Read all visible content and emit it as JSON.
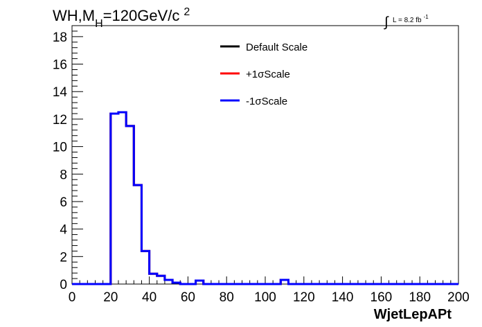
{
  "chart_data": {
    "type": "histogram",
    "title_main": "WH,M",
    "title_sub": "H",
    "title_rest": "=120GeV/c",
    "title_sup": "2",
    "lumi_text": "L = 8.2 fb",
    "lumi_sup": "-1",
    "xlabel": "WjetLepAPt",
    "ylabel": "",
    "xlim": [
      0,
      200
    ],
    "ylim": [
      0,
      18.8
    ],
    "x_ticks": [
      0,
      20,
      40,
      60,
      80,
      100,
      120,
      140,
      160,
      180,
      200
    ],
    "y_ticks": [
      0,
      2,
      4,
      6,
      8,
      10,
      12,
      14,
      16,
      18
    ],
    "bin_width": 4,
    "legend_position": "top-center",
    "series": [
      {
        "name": "Default Scale",
        "color": "#000000",
        "values": [
          0,
          0,
          0,
          0,
          0,
          12.4,
          12.5,
          11.5,
          7.2,
          2.4,
          0.75,
          0.6,
          0.3,
          0.1,
          0,
          0,
          0.25,
          0,
          0,
          0,
          0,
          0,
          0,
          0,
          0,
          0,
          0,
          0.3,
          0,
          0,
          0,
          0,
          0,
          0,
          0,
          0,
          0,
          0,
          0,
          0,
          0,
          0,
          0,
          0,
          0,
          0,
          0,
          0,
          0,
          0
        ]
      },
      {
        "name": "+1σScale",
        "color": "#ff0000",
        "values": [
          0,
          0,
          0,
          0,
          0,
          12.4,
          12.5,
          11.5,
          7.2,
          2.4,
          0.75,
          0.6,
          0.3,
          0.1,
          0,
          0,
          0.25,
          0,
          0,
          0,
          0,
          0,
          0,
          0,
          0,
          0,
          0,
          0.3,
          0,
          0,
          0,
          0,
          0,
          0,
          0,
          0,
          0,
          0,
          0,
          0,
          0,
          0,
          0,
          0,
          0,
          0,
          0,
          0,
          0,
          0
        ]
      },
      {
        "name": "-1σScale",
        "color": "#0000ff",
        "values": [
          0,
          0,
          0,
          0,
          0,
          12.4,
          12.5,
          11.5,
          7.2,
          2.4,
          0.75,
          0.6,
          0.3,
          0.1,
          0,
          0,
          0.25,
          0,
          0,
          0,
          0,
          0,
          0,
          0,
          0,
          0,
          0,
          0.3,
          0,
          0,
          0,
          0,
          0,
          0,
          0,
          0,
          0,
          0,
          0,
          0,
          0,
          0,
          0,
          0,
          0,
          0,
          0,
          0,
          0,
          0
        ]
      }
    ]
  }
}
